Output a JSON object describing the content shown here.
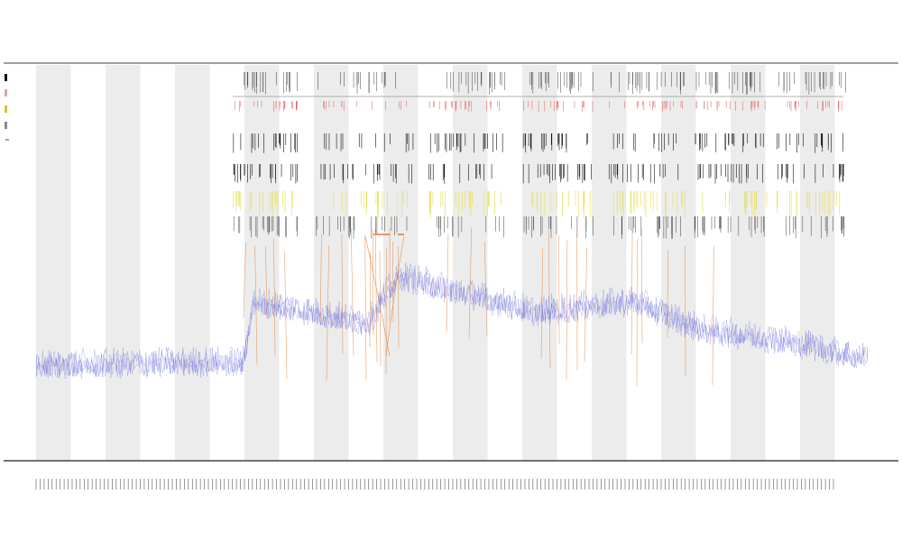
{
  "chart_data": {
    "type": "line",
    "title": "",
    "subtitle_lines": [
      "",
      ""
    ],
    "xlabel": "",
    "ylabel": "",
    "x_tick_count": 200,
    "legend": {
      "placement": "top-left",
      "entries": [
        {
          "label": "",
          "color": "#111111"
        },
        {
          "label": "",
          "color": "#e8a0a0"
        },
        {
          "label": "",
          "color": "#e0c040"
        },
        {
          "label": "",
          "color": "#888888"
        }
      ]
    },
    "track_labels": [
      "",
      "",
      ""
    ],
    "colors": {
      "signal_line": "#5a5ad6",
      "peak_lines": "#e07a2a",
      "band_shade": "#ececec",
      "rug_dark": "#111111",
      "rug_red": "#e25555",
      "rug_yellow": "#e6e060",
      "highlight_bar": "#e8743a"
    },
    "grid": false,
    "alternating_bands": 12,
    "signal_baseline": [
      {
        "x": 0.0,
        "y": 0.1
      },
      {
        "x": 0.25,
        "y": 0.11
      },
      {
        "x": 0.26,
        "y": 0.28
      },
      {
        "x": 0.4,
        "y": 0.22
      },
      {
        "x": 0.42,
        "y": 0.3
      },
      {
        "x": 0.44,
        "y": 0.35
      },
      {
        "x": 0.6,
        "y": 0.25
      },
      {
        "x": 0.72,
        "y": 0.28
      },
      {
        "x": 0.8,
        "y": 0.2
      },
      {
        "x": 0.9,
        "y": 0.17
      },
      {
        "x": 1.0,
        "y": 0.12
      }
    ]
  }
}
